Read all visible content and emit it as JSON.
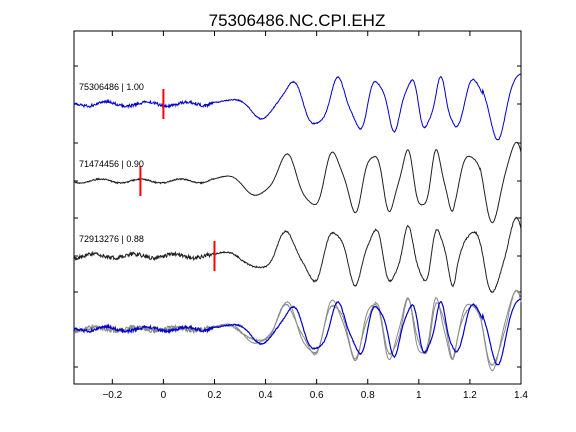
{
  "chart_data": {
    "type": "line",
    "title": "75306486.NC.CPI.EHZ",
    "xlim": [
      -0.35,
      1.4
    ],
    "x_ticks": [
      -0.2,
      0,
      0.2,
      0.4,
      0.6,
      0.8,
      1,
      1.2,
      1.4
    ],
    "x_tick_labels": [
      "−0.2",
      "0",
      "0.2",
      "0.4",
      "0.6",
      "0.8",
      "1",
      "1.2",
      "1.4"
    ],
    "grid": false,
    "series": [
      {
        "name": "75306486 | 1.00",
        "color": "#0000cc",
        "pick_time": 0.0,
        "pick_color": "#ff0000",
        "row": 0
      },
      {
        "name": "71474456 | 0.90",
        "color": "#202020",
        "pick_time": -0.09,
        "pick_color": "#ff0000",
        "row": 1
      },
      {
        "name": "72913276 | 0.88",
        "color": "#202020",
        "pick_time": 0.2,
        "pick_color": "#ff0000",
        "row": 2
      }
    ],
    "overlay_row": 3
  }
}
